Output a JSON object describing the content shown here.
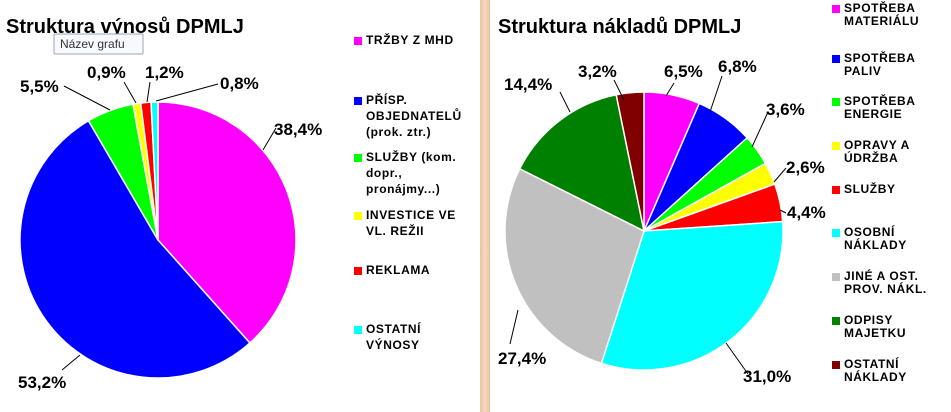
{
  "tooltip": "Název grafu",
  "chart_data": [
    {
      "type": "pie",
      "title": "Struktura výnosů DPMLJ",
      "legend_position": "right",
      "slices": [
        {
          "label": [
            "TRŽBY Z MHD"
          ],
          "value": 38.4,
          "value_label": "38,4%",
          "color": "#ff00ff"
        },
        {
          "label": [
            "PŘÍSP.",
            "OBJEDNATELŮ",
            "(prok. ztr.)"
          ],
          "value": 53.2,
          "value_label": "53,2%",
          "color": "#0000ff"
        },
        {
          "label": [
            "SLUŽBY (kom.",
            "dopr.,",
            "pronájmy...)"
          ],
          "value": 5.5,
          "value_label": "5,5%",
          "color": "#00ff00"
        },
        {
          "label": [
            "INVESTICE VE",
            "VL. REŽII"
          ],
          "value": 0.9,
          "value_label": "0,9%",
          "color": "#ffff00"
        },
        {
          "label": [
            "REKLAMA"
          ],
          "value": 1.2,
          "value_label": "1,2%",
          "color": "#ff0000"
        },
        {
          "label": [
            "OSTATNÍ",
            "VÝNOSY"
          ],
          "value": 0.8,
          "value_label": "0,8%",
          "color": "#00ffff"
        }
      ]
    },
    {
      "type": "pie",
      "title": "Struktura nákladů DPMLJ",
      "legend_position": "right",
      "slices": [
        {
          "label": [
            "SPOTŘEBA",
            "MATERIÁLU"
          ],
          "value": 6.5,
          "value_label": "6,5%",
          "color": "#ff00ff"
        },
        {
          "label": [
            "SPOTŘEBA",
            "PALIV"
          ],
          "value": 6.8,
          "value_label": "6,8%",
          "color": "#0000ff"
        },
        {
          "label": [
            "SPOTŘEBA",
            "ENERGIE"
          ],
          "value": 3.6,
          "value_label": "3,6%",
          "color": "#00ff00"
        },
        {
          "label": [
            "OPRAVY A",
            "ÚDRŽBA"
          ],
          "value": 2.6,
          "value_label": "2,6%",
          "color": "#ffff00"
        },
        {
          "label": [
            "SLUŽBY"
          ],
          "value": 4.4,
          "value_label": "4,4%",
          "color": "#ff0000"
        },
        {
          "label": [
            "OSOBNÍ",
            "NÁKLADY"
          ],
          "value": 31.0,
          "value_label": "31,0%",
          "color": "#00ffff"
        },
        {
          "label": [
            "JINÉ A OST.",
            "PROV. NÁKL."
          ],
          "value": 27.4,
          "value_label": "27,4%",
          "color": "#c0c0c0"
        },
        {
          "label": [
            "ODPISY",
            "MAJETKU"
          ],
          "value": 14.4,
          "value_label": "14,4%",
          "color": "#008000"
        },
        {
          "label": [
            "OSTATNÍ",
            "NÁKLADY"
          ],
          "value": 3.2,
          "value_label": "3,2%",
          "color": "#800000"
        }
      ]
    }
  ]
}
